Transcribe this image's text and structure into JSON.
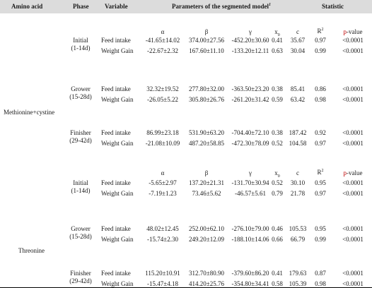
{
  "headers": {
    "amino_acid": "Amino acid",
    "phase": "Phase",
    "variable": "Variable",
    "params": "Parameters of the segmented model",
    "params_sup": "1",
    "statistic": "Statistic"
  },
  "sub_headers": {
    "alpha": "α",
    "beta": "β",
    "gamma": "γ",
    "x0_base": "x",
    "x0_sub": "0",
    "c": "c",
    "r2_base": "R",
    "r2_sup": "2",
    "pvalue_p": "p",
    "pvalue_rest": "-value"
  },
  "groups": [
    {
      "amino_acid": "Methionine+cystine",
      "phases": [
        {
          "name": "Initial",
          "range": "(1-14d)",
          "rows": [
            {
              "variable": "Feed intake",
              "alpha": "-41.65±14.02",
              "beta": "374.00±27.56",
              "gamma": "-452.20±30.60",
              "x0": "0.41",
              "c": "35.67",
              "r2": "0.97",
              "p": "<0.0001"
            },
            {
              "variable": "Weight Gain",
              "alpha": "-22.67±2.32",
              "beta": "167.60±11.10",
              "gamma": "-133.20±12.11",
              "x0": "0.63",
              "c": "30.04",
              "r2": "0.99",
              "p": "<0.0001"
            }
          ]
        },
        {
          "name": "Grower",
          "range": "(15-28d)",
          "rows": [
            {
              "variable": "Feed intake",
              "alpha": "32.32±19.52",
              "beta": "277.80±32.00",
              "gamma": "-363.50±23.20",
              "x0": "0.38",
              "c": "85.41",
              "r2": "0.86",
              "p": "<0.0001"
            },
            {
              "variable": "Weight Gain",
              "alpha": "-26.05±5.22",
              "beta": "305.80±26.76",
              "gamma": "-261.20±31.42",
              "x0": "0.59",
              "c": "63.42",
              "r2": "0.98",
              "p": "<0.0001"
            }
          ]
        },
        {
          "name": "Finisher",
          "range": "(29-42d)",
          "rows": [
            {
              "variable": "Feed intake",
              "alpha": "86.99±23.18",
              "beta": "531.90±63.20",
              "gamma": "-704.40±72.10",
              "x0": "0.38",
              "c": "187.42",
              "r2": "0.92",
              "p": "<0.0001"
            },
            {
              "variable": "Weight Gain",
              "alpha": "-21.08±10.09",
              "beta": "487.20±58.85",
              "gamma": "-472.30±78.09",
              "x0": "0.52",
              "c": "104.58",
              "r2": "0.97",
              "p": "<0.0001"
            }
          ]
        }
      ]
    },
    {
      "amino_acid": "Threonine",
      "phases": [
        {
          "name": "Initial",
          "range": "(1-14d)",
          "rows": [
            {
              "variable": "Feed intake",
              "alpha": "-5.65±2.97",
              "beta": "137.20±21.31",
              "gamma": "-131.70±30.94",
              "x0": "0.52",
              "c": "30.10",
              "r2": "0.95",
              "p": "<0.0001"
            },
            {
              "variable": "Weight Gain",
              "alpha": "-7.19±1.23",
              "beta": "73.46±5.62",
              "gamma": "-46.57±5.61",
              "x0": "0.79",
              "c": "21.78",
              "r2": "0.97",
              "p": "<0.0001"
            }
          ]
        },
        {
          "name": "Grower",
          "range": "(15-28d)",
          "rows": [
            {
              "variable": "Feed intake",
              "alpha": "48.02±12.45",
              "beta": "252.00±62.10",
              "gamma": "-276.10±79.00",
              "x0": "0.46",
              "c": "105.53",
              "r2": "0.95",
              "p": "<0.0001"
            },
            {
              "variable": "Weight Gain",
              "alpha": "-15.74±2.30",
              "beta": "249.20±12.09",
              "gamma": "-188.10±14.06",
              "x0": "0.66",
              "c": "66.79",
              "r2": "0.99",
              "p": "<0.0001"
            }
          ]
        },
        {
          "name": "Finisher",
          "range": "(29-42d)",
          "rows": [
            {
              "variable": "Feed intake",
              "alpha": "115.20±10.91",
              "beta": "312.70±80.90",
              "gamma": "-379.60±86.20",
              "x0": "0.41",
              "c": "179.63",
              "r2": "0.87",
              "p": "<0.0001"
            },
            {
              "variable": "Weight Gain",
              "alpha": "-15.47±4.18",
              "beta": "414.20±25.76",
              "gamma": "-354.80±34.41",
              "x0": "0.58",
              "c": "105.39",
              "r2": "0.98",
              "p": "<0.0001"
            }
          ]
        }
      ]
    }
  ]
}
